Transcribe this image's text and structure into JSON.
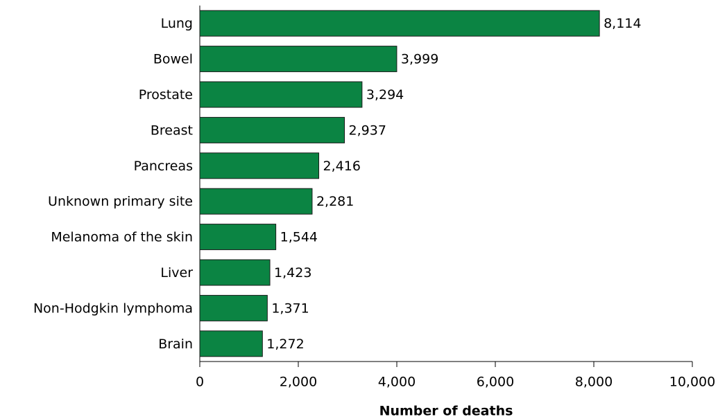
{
  "chart_data": {
    "type": "bar",
    "orientation": "horizontal",
    "x_label": "Number of deaths",
    "categories": [
      "Lung",
      "Bowel",
      "Prostate",
      "Breast",
      "Pancreas",
      "Unknown primary site",
      "Melanoma of the skin",
      "Liver",
      "Non-Hodgkin lymphoma",
      "Brain"
    ],
    "values": [
      8114,
      3999,
      3294,
      2937,
      2416,
      2281,
      1544,
      1423,
      1371,
      1272
    ],
    "value_labels": [
      "8,114",
      "3,999",
      "3,294",
      "2,937",
      "2,416",
      "2,281",
      "1,544",
      "1,423",
      "1,371",
      "1,272"
    ],
    "color": "#0b8443",
    "xlim": [
      0,
      10000
    ],
    "xticks": [
      0,
      {
        "value": 2000,
        "label": "2,000"
      },
      {
        "value": 4000,
        "label": "4,000"
      },
      {
        "value": 6000,
        "label": "6,000"
      },
      {
        "value": 8000,
        "label": "8,000"
      },
      {
        "value": 10000,
        "label": "10,000"
      }
    ],
    "grid": false
  }
}
